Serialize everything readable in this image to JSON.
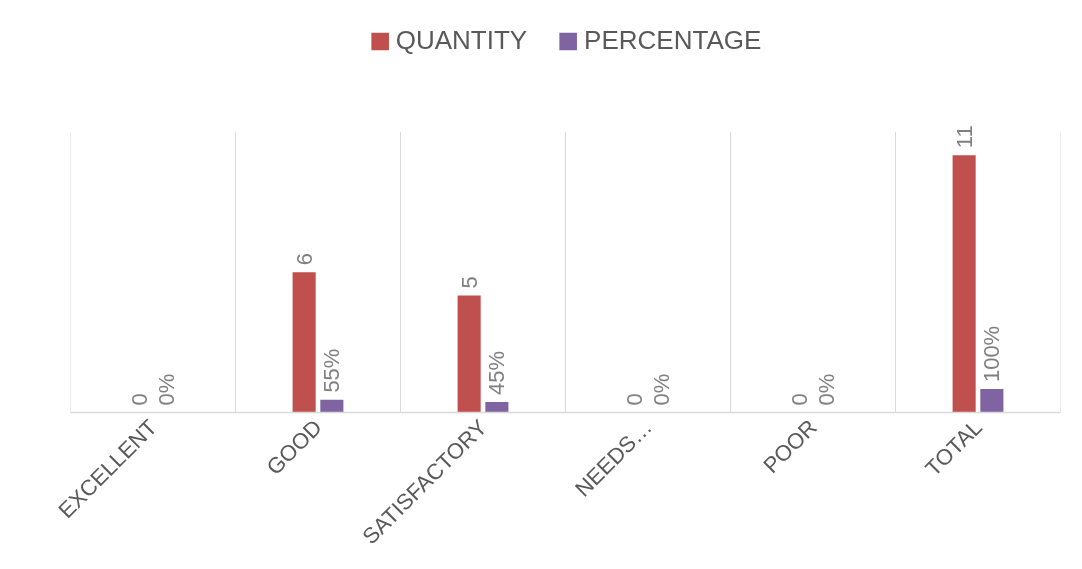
{
  "chart_data": {
    "type": "bar",
    "categories": [
      "EXCELLENT",
      "GOOD",
      "SATISFACTORY",
      "NEEDS…",
      "POOR",
      "TOTAL"
    ],
    "series": [
      {
        "name": "QUANTITY",
        "color": "#c0504d",
        "values": [
          0,
          6,
          5,
          0,
          0,
          11
        ],
        "value_labels": [
          "0",
          "6",
          "5",
          "0",
          "0",
          "11"
        ]
      },
      {
        "name": "PERCENTAGE",
        "color": "#8064a2",
        "values": [
          0,
          0.55,
          0.45,
          0,
          0,
          1
        ],
        "value_labels": [
          "0%",
          "55%",
          "45%",
          "0%",
          "0%",
          "100%"
        ]
      }
    ],
    "ylim": [
      0,
      12
    ],
    "tick_labels": "x",
    "grid": "x",
    "legend": "top"
  }
}
